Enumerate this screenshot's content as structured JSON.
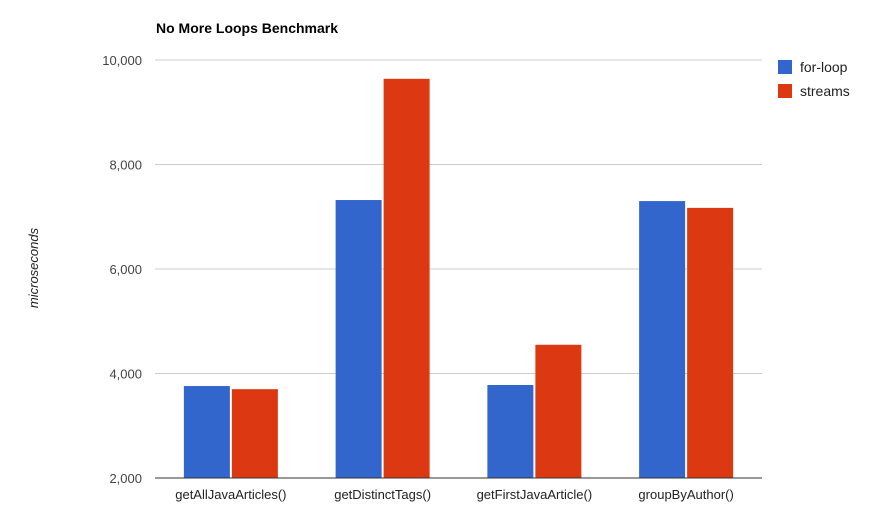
{
  "chart_data": {
    "type": "bar",
    "title": "No More Loops Benchmark",
    "xlabel": "",
    "ylabel": "microseconds",
    "categories": [
      "getAllJavaArticles()",
      "getDistinctTags()",
      "getFirstJavaArticle()",
      "groupByAuthor()"
    ],
    "series": [
      {
        "name": "for-loop",
        "color": "#3366cc",
        "values": [
          3760,
          7320,
          3780,
          7300
        ]
      },
      {
        "name": "streams",
        "color": "#dc3912",
        "values": [
          3700,
          9640,
          4550,
          7170
        ]
      }
    ],
    "ylim": [
      2000,
      10000
    ],
    "yticks": [
      2000,
      4000,
      6000,
      8000,
      10000
    ],
    "ytick_labels": [
      "2,000",
      "4,000",
      "6,000",
      "8,000",
      "10,000"
    ],
    "grid": true,
    "legend_position": "right"
  }
}
